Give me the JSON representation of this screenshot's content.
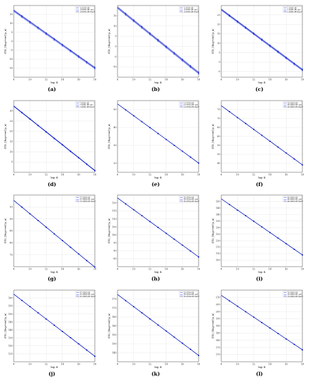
{
  "chart_data": [
    {
      "type": "line",
      "caption": "(a)",
      "xlabel": "log₂ K",
      "ylabel": "STD_{Rup+err}(ρ_n)",
      "xlim": [
        8,
        18
      ],
      "ylim": [
        -20,
        20
      ],
      "xticks": [
        8,
        10,
        12,
        14,
        16,
        18
      ],
      "yticks": [
        -15,
        -10,
        -5,
        0,
        5,
        10,
        15
      ],
      "x": [
        9,
        10,
        11,
        12,
        13,
        14,
        15,
        16,
        17,
        18
      ],
      "series": [
        {
          "name": "-0.9256 dB",
          "values": [
            14.3,
            11.1,
            7.9,
            4.7,
            1.5,
            -1.7,
            -4.9,
            -8.1,
            -11.3,
            -14.4
          ]
        },
        {
          "name": "-0.9256 dB calc",
          "values": [
            13.5,
            10.3,
            7.1,
            3.9,
            0.7,
            -2.5,
            -5.7,
            -8.9,
            -12.1,
            -15.2
          ]
        },
        {
          "name": "-0.9256 dB theor",
          "values": [
            14.0,
            10.8,
            7.6,
            4.4,
            1.2,
            -2.0,
            -5.2,
            -8.4,
            -11.6,
            -14.8
          ]
        }
      ]
    },
    {
      "type": "line",
      "caption": "(b)",
      "xlabel": "log₂ K",
      "ylabel": "STD_{Rup+err}(ρ_n)",
      "xlim": [
        8,
        18
      ],
      "ylim": [
        -15,
        20
      ],
      "xticks": [
        8,
        10,
        12,
        14,
        16,
        18
      ],
      "yticks": [
        -10,
        -5,
        0,
        5,
        10,
        15
      ],
      "x": [
        9,
        10,
        11,
        12,
        13,
        14,
        15,
        16,
        17,
        18
      ],
      "series": [
        {
          "name": "-2.6556 dB",
          "values": [
            16.2,
            13.0,
            9.8,
            6.6,
            3.4,
            0.2,
            -3.0,
            -6.2,
            -9.4,
            -12.5
          ]
        },
        {
          "name": "-2.6556 dB calc",
          "values": [
            15.4,
            12.2,
            9.0,
            5.8,
            2.6,
            -0.6,
            -3.8,
            -7.0,
            -10.2,
            -13.3
          ]
        },
        {
          "name": "-2.6556 dB theor",
          "values": [
            15.8,
            12.6,
            9.4,
            6.2,
            3.0,
            -0.2,
            -3.4,
            -6.6,
            -9.8,
            -12.9
          ]
        }
      ]
    },
    {
      "type": "line",
      "caption": "(c)",
      "xlabel": "log₂ K",
      "ylabel": "STD_{Rup+err}(ρ_n)",
      "xlim": [
        8,
        18
      ],
      "ylim": [
        -8,
        30
      ],
      "xticks": [
        8,
        10,
        12,
        14,
        16,
        18
      ],
      "yticks": [
        -5,
        0,
        5,
        10,
        15,
        20,
        25
      ],
      "x": [
        9,
        10,
        11,
        12,
        13,
        14,
        15,
        16,
        17,
        18
      ],
      "series": [
        {
          "name": "1.0000 dB",
          "values": [
            25.0,
            21.8,
            18.6,
            15.4,
            12.2,
            9.0,
            5.8,
            2.6,
            -0.6,
            -3.7
          ]
        },
        {
          "name": "1.0000 dB calc",
          "values": [
            24.3,
            21.1,
            17.9,
            14.7,
            11.5,
            8.3,
            5.1,
            1.9,
            -1.3,
            -4.4
          ]
        },
        {
          "name": "1.0000 dB theor",
          "values": [
            24.7,
            21.5,
            18.3,
            15.1,
            11.9,
            8.7,
            5.5,
            2.3,
            -0.9,
            -4.1
          ]
        }
      ]
    },
    {
      "type": "line",
      "caption": "(d)",
      "xlabel": "log₂ K",
      "ylabel": "STD_{Rup+err}(ρ_n)",
      "xlim": [
        8,
        18
      ],
      "ylim": [
        0,
        35
      ],
      "xticks": [
        8,
        10,
        12,
        14,
        16,
        18
      ],
      "yticks": [
        5,
        10,
        15,
        20,
        25,
        30
      ],
      "x": [
        9,
        10,
        11,
        12,
        13,
        14,
        15,
        16,
        17,
        18
      ],
      "series": [
        {
          "name": "7.0000 dB",
          "values": [
            29.3,
            26.2,
            23.0,
            19.9,
            16.7,
            13.6,
            10.4,
            7.3,
            4.1,
            1.0
          ]
        },
        {
          "name": "7.0000 dB calc",
          "values": [
            29.0,
            25.9,
            22.7,
            19.6,
            16.4,
            13.3,
            10.1,
            7.0,
            3.8,
            0.7
          ]
        },
        {
          "name": "7.0000 dB theor",
          "values": [
            29.2,
            26.0,
            22.9,
            19.7,
            16.6,
            13.4,
            10.3,
            7.1,
            4.0,
            0.8
          ]
        }
      ]
    },
    {
      "type": "line",
      "caption": "(e)",
      "xlabel": "log₂ K",
      "ylabel": "STD_{Rup+err}(ρ_n)",
      "xlim": [
        8,
        18
      ],
      "ylim": [
        15,
        55
      ],
      "xticks": [
        8,
        10,
        12,
        14,
        16,
        18
      ],
      "yticks": [
        20,
        30,
        40,
        50
      ],
      "x": [
        9,
        10,
        11,
        12,
        13,
        14,
        15,
        16,
        17,
        18
      ],
      "series": [
        {
          "name": "13.9794 dB",
          "values": [
            49.9,
            46.6,
            43.3,
            40.0,
            36.7,
            33.4,
            30.1,
            26.8,
            23.5,
            20.2
          ]
        },
        {
          "name": "13.9794 dB calc",
          "values": [
            49.8,
            46.5,
            43.2,
            39.9,
            36.6,
            33.3,
            30.0,
            26.7,
            23.4,
            20.1
          ]
        },
        {
          "name": "13.9794 dB theor",
          "values": [
            49.85,
            46.55,
            43.25,
            39.95,
            36.65,
            33.35,
            30.05,
            26.75,
            23.45,
            20.15
          ]
        }
      ]
    },
    {
      "type": "line",
      "caption": "(f)",
      "xlabel": "log₂ K",
      "ylabel": "STD_{Rup+err}(ρ_n)",
      "xlim": [
        8,
        18
      ],
      "ylim": [
        40,
        80
      ],
      "xticks": [
        8,
        10,
        12,
        14,
        16,
        18
      ],
      "yticks": [
        45,
        50,
        55,
        60,
        65,
        70,
        75
      ],
      "x": [
        9,
        10,
        11,
        12,
        13,
        14,
        15,
        16,
        17,
        18
      ],
      "series": [
        {
          "name": "20.0000 dB",
          "values": [
            73.9,
            70.6,
            67.3,
            64.0,
            60.7,
            57.4,
            54.1,
            50.8,
            47.5,
            44.2
          ]
        },
        {
          "name": "20.0000 dB calc",
          "values": [
            73.8,
            70.5,
            67.2,
            63.9,
            60.6,
            57.3,
            54.0,
            50.7,
            47.4,
            44.1
          ]
        },
        {
          "name": "20.0000 dB theor",
          "values": [
            73.85,
            70.55,
            67.25,
            63.95,
            60.65,
            57.35,
            54.05,
            50.75,
            47.45,
            44.15
          ]
        }
      ]
    },
    {
      "type": "line",
      "caption": "(g)",
      "xlabel": "log₂ K",
      "ylabel": "STD_{Rup+err}(ρ_n)",
      "xlim": [
        8,
        18
      ],
      "ylim": [
        70,
        100
      ],
      "xticks": [
        8,
        10,
        12,
        14,
        16,
        18
      ],
      "yticks": [
        75,
        80,
        85,
        90,
        95
      ],
      "x": [
        9,
        10,
        11,
        12,
        13,
        14,
        15,
        16,
        17,
        18
      ],
      "series": [
        {
          "name": "27.9588 dB",
          "values": [
            95.0,
            92.2,
            89.4,
            86.6,
            83.8,
            81.0,
            78.2,
            75.4,
            72.6,
            69.9
          ]
        },
        {
          "name": "27.9588 dB calc",
          "values": [
            94.9,
            92.1,
            89.3,
            86.5,
            83.7,
            80.9,
            78.1,
            75.3,
            72.5,
            69.8
          ]
        },
        {
          "name": "27.9588 dB theor",
          "values": [
            94.95,
            92.15,
            89.35,
            86.55,
            83.75,
            80.95,
            78.15,
            75.35,
            72.55,
            69.85
          ]
        }
      ]
    },
    {
      "type": "line",
      "caption": "(h)",
      "xlabel": "log₂ K",
      "ylabel": "STD_{Rup+err}(ρ_n)",
      "xlim": [
        8,
        18
      ],
      "ylim": [
        80,
        125
      ],
      "xticks": [
        8,
        10,
        12,
        14,
        16,
        18
      ],
      "yticks": [
        85,
        90,
        95,
        100,
        105,
        110,
        115,
        120
      ],
      "x": [
        9,
        10,
        11,
        12,
        13,
        14,
        15,
        16,
        17,
        18
      ],
      "series": [
        {
          "name": "33.9794 dB",
          "values": [
            119.5,
            115.8,
            112.1,
            108.4,
            104.7,
            101.0,
            97.3,
            93.6,
            89.9,
            86.2
          ]
        },
        {
          "name": "33.9794 dB calc",
          "values": [
            119.4,
            115.7,
            112.0,
            108.3,
            104.6,
            100.9,
            97.2,
            93.5,
            89.8,
            86.1
          ]
        },
        {
          "name": "33.9794 dB theor",
          "values": [
            119.45,
            115.75,
            112.05,
            108.35,
            104.65,
            100.95,
            97.25,
            93.55,
            89.85,
            86.15
          ]
        }
      ]
    },
    {
      "type": "line",
      "caption": "(i)",
      "xlabel": "log₂ K",
      "ylabel": "STD_{Rup+err}(ρ_n)",
      "xlim": [
        8,
        18
      ],
      "ylim": [
        100,
        155
      ],
      "xticks": [
        8,
        10,
        12,
        14,
        16,
        18
      ],
      "yticks": [
        105,
        110,
        115,
        120,
        125,
        130,
        135,
        140,
        145,
        150
      ],
      "x": [
        9,
        10,
        11,
        12,
        13,
        14,
        15,
        16,
        17,
        18
      ],
      "series": [
        {
          "name": "40.0000 dB",
          "values": [
            147.8,
            143.5,
            139.2,
            134.9,
            130.6,
            126.3,
            122.0,
            117.7,
            113.4,
            109.1
          ]
        },
        {
          "name": "40.0000 dB calc",
          "values": [
            147.7,
            143.4,
            139.1,
            134.8,
            130.5,
            126.2,
            121.9,
            117.6,
            113.3,
            109.0
          ]
        },
        {
          "name": "40.0000 dB theor",
          "values": [
            147.75,
            143.45,
            139.15,
            134.85,
            130.55,
            126.25,
            121.95,
            117.65,
            113.35,
            109.05
          ]
        }
      ]
    },
    {
      "type": "line",
      "caption": "(j)",
      "xlabel": "log₂ K",
      "ylabel": "STD_{Rup+err}(ρ_n)",
      "xlim": [
        8,
        18
      ],
      "ylim": [
        120,
        165
      ],
      "xticks": [
        8,
        10,
        12,
        14,
        16,
        18
      ],
      "yticks": [
        125,
        130,
        135,
        140,
        145,
        150,
        155,
        160
      ],
      "x": [
        9,
        10,
        11,
        12,
        13,
        14,
        15,
        16,
        17,
        18
      ],
      "series": [
        {
          "name": "47.9588 dB",
          "values": [
            158.6,
            154.7,
            150.8,
            146.9,
            143.0,
            139.1,
            135.2,
            131.3,
            127.4,
            123.5
          ]
        },
        {
          "name": "47.9588 dB calc",
          "values": [
            158.5,
            154.6,
            150.7,
            146.8,
            142.9,
            139.0,
            135.1,
            131.2,
            127.3,
            123.4
          ]
        },
        {
          "name": "47.9588 dB theor",
          "values": [
            158.55,
            154.65,
            150.75,
            146.85,
            142.95,
            139.05,
            135.15,
            131.25,
            127.35,
            123.45
          ]
        }
      ]
    },
    {
      "type": "line",
      "caption": "(k)",
      "xlabel": "log₂ K",
      "ylabel": "STD_{Rup+err}(ρ_n)",
      "xlim": [
        8,
        18
      ],
      "ylim": [
        140,
        180
      ],
      "xticks": [
        8,
        10,
        12,
        14,
        16,
        18
      ],
      "yticks": [
        145,
        150,
        155,
        160,
        165,
        170,
        175
      ],
      "x": [
        9,
        10,
        11,
        12,
        13,
        14,
        15,
        16,
        17,
        18
      ],
      "series": [
        {
          "name": "53.9794 dB",
          "values": [
            174.2,
            170.8,
            167.4,
            164.0,
            160.6,
            157.2,
            153.8,
            150.4,
            147.0,
            143.6
          ]
        },
        {
          "name": "53.9794 dB calc",
          "values": [
            174.1,
            170.7,
            167.3,
            163.9,
            160.5,
            157.1,
            153.7,
            150.3,
            146.9,
            143.5
          ]
        },
        {
          "name": "53.9794 dB theor",
          "values": [
            174.15,
            170.75,
            167.35,
            163.95,
            160.55,
            157.15,
            153.75,
            150.35,
            146.95,
            143.55
          ]
        }
      ]
    },
    {
      "type": "line",
      "caption": "(l)",
      "xlabel": "log₂ K",
      "ylabel": "STD_{Rup+err}(ρ_n)",
      "xlim": [
        8,
        18
      ],
      "ylim": [
        165,
        215
      ],
      "xticks": [
        8,
        10,
        12,
        14,
        16,
        18
      ],
      "yticks": [
        170,
        175,
        180,
        185,
        190,
        195,
        200,
        205,
        210
      ],
      "x": [
        9,
        10,
        11,
        12,
        13,
        14,
        15,
        16,
        17,
        18
      ],
      "series": [
        {
          "name": "70.0000 dB",
          "values": [
            207.6,
            203.8,
            200.0,
            196.2,
            192.4,
            188.6,
            184.8,
            181.0,
            177.2,
            173.4
          ]
        },
        {
          "name": "70.0000 dB calc",
          "values": [
            207.5,
            203.7,
            199.9,
            196.1,
            192.3,
            188.5,
            184.7,
            180.9,
            177.1,
            173.3
          ]
        },
        {
          "name": "70.0000 dB theor",
          "values": [
            207.55,
            203.75,
            199.95,
            196.15,
            192.35,
            188.55,
            184.75,
            180.95,
            177.15,
            173.35
          ]
        }
      ]
    }
  ],
  "colors": {
    "series": [
      "#1f2fd6",
      "#2b3cff",
      "#0b1aa8"
    ],
    "grid": "#d9d9d9",
    "axis": "#333333"
  }
}
